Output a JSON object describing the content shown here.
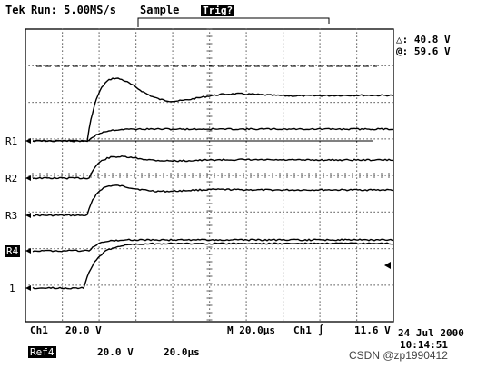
{
  "header": {
    "brand": "Tek",
    "run_status": "Run: 5.00MS/s",
    "acq_mode": "Sample",
    "trigger_state": "Trig?"
  },
  "cursor_readout": {
    "delta": "△: 40.8 V",
    "at": "@: 59.6 V"
  },
  "channel_markers": [
    "R1",
    "R2",
    "R3",
    "R4",
    "1"
  ],
  "footer": {
    "ch1_label": "Ch1",
    "ch1_scale": "20.0 V",
    "timebase": "M 20.0µs",
    "trigger_source": "Ch1",
    "trigger_slope": "∫",
    "trigger_level": "11.6 V",
    "date": "24 Jul 2000",
    "time": "10:14:51",
    "ref_label": "Ref4",
    "ref_scale": "20.0 V",
    "ref_time": "20.0µs"
  },
  "watermark": "CSDN @zp1990412"
}
